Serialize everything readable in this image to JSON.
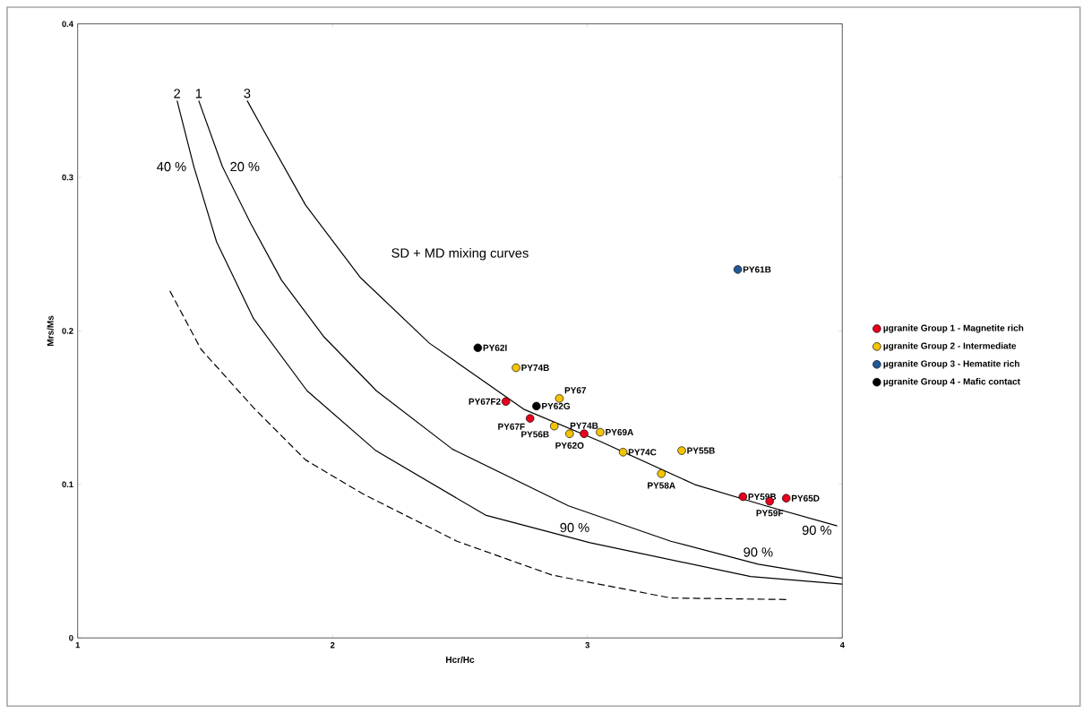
{
  "chart_data": {
    "type": "scatter",
    "xlabel": "Hcr/Hc",
    "ylabel": "Mrs/Ms",
    "xlim": [
      1,
      4
    ],
    "ylim": [
      0,
      0.4
    ],
    "xticks": [
      1,
      2,
      3,
      4
    ],
    "yticks": [
      0,
      0.1,
      0.2,
      0.3,
      0.4
    ],
    "legend": "right",
    "marker": "circle",
    "series": [
      {
        "name": "µgranite Group 1 - Magnetite rich",
        "color": "#e8001c",
        "x": [
          2.68,
          2.775,
          2.987,
          3.61,
          3.715,
          3.78
        ],
        "values": [
          0.154,
          0.143,
          0.133,
          0.092,
          0.089,
          0.091
        ]
      },
      {
        "name": "µgranite Group 2 - Intermediate",
        "color": "#f5c400",
        "x": [
          2.72,
          2.89,
          2.87,
          2.93,
          3.05,
          3.14,
          3.37,
          3.29
        ],
        "values": [
          0.176,
          0.156,
          0.138,
          0.133,
          0.134,
          0.121,
          0.122,
          0.107
        ]
      },
      {
        "name": "µgranite Group 3 - Hematite rich",
        "color": "#1f5a96",
        "x": [
          3.59
        ],
        "values": [
          0.24
        ]
      },
      {
        "name": "µgranite Group 4 - Mafic contact",
        "color": "#000000",
        "x": [
          2.57,
          2.8
        ],
        "values": [
          0.189,
          0.151
        ]
      },
      {
        "name": "2",
        "type": "line",
        "marker": "none",
        "line_style": "solid",
        "color": "#000000",
        "x": [
          1.39,
          1.456,
          1.545,
          1.69,
          1.9,
          2.17,
          2.6,
          3.01,
          3.64,
          4.0
        ],
        "values": [
          0.35,
          0.307,
          0.258,
          0.208,
          0.161,
          0.122,
          0.08,
          0.062,
          0.04,
          0.035
        ]
      },
      {
        "name": "1",
        "type": "line",
        "marker": "none",
        "line_style": "solid",
        "color": "#000000",
        "x": [
          1.475,
          1.568,
          1.679,
          1.8,
          1.967,
          2.172,
          2.47,
          2.926,
          3.327,
          3.67,
          4.0
        ],
        "values": [
          0.35,
          0.307,
          0.27,
          0.233,
          0.196,
          0.161,
          0.123,
          0.086,
          0.063,
          0.048,
          0.039
        ]
      },
      {
        "name": "3",
        "type": "line",
        "marker": "none",
        "line_style": "solid",
        "color": "#000000",
        "x": [
          1.665,
          1.725,
          1.894,
          2.108,
          2.38,
          2.75,
          3.05,
          3.42,
          3.7,
          3.98
        ],
        "values": [
          0.35,
          0.332,
          0.282,
          0.235,
          0.192,
          0.149,
          0.128,
          0.1,
          0.086,
          0.073
        ]
      },
      {
        "type": "line",
        "marker": "none",
        "line_style": "dashed",
        "color": "#000000",
        "x": [
          1.362,
          1.484,
          1.69,
          1.894,
          2.117,
          2.488,
          2.86,
          3.327,
          3.79
        ],
        "values": [
          0.226,
          0.188,
          0.15,
          0.116,
          0.094,
          0.063,
          0.041,
          0.026,
          0.025
        ]
      }
    ],
    "annotations": [
      "SD + MD mixing curves",
      {
        "text": "40 %",
        "x": 1.456,
        "y": 0.307
      },
      {
        "text": "20 %",
        "x": 1.568,
        "y": 0.307
      },
      {
        "text": "90 %",
        "x": 2.95,
        "y": 0.064
      },
      {
        "text": "90 %",
        "x": 3.67,
        "y": 0.048
      },
      {
        "text": "90 %",
        "x": 3.9,
        "y": 0.078
      },
      {
        "text": "PY61B",
        "x": 3.59,
        "y": 0.24
      },
      {
        "text": "PY62I",
        "x": 2.57,
        "y": 0.189
      },
      {
        "text": "PY74B",
        "x": 2.72,
        "y": 0.176
      },
      {
        "text": "PY67F2",
        "x": 2.68,
        "y": 0.154
      },
      {
        "text": "PY67",
        "x": 2.89,
        "y": 0.156
      },
      {
        "text": "PY62G",
        "x": 2.8,
        "y": 0.151
      },
      {
        "text": "PY67F",
        "x": 2.775,
        "y": 0.143
      },
      {
        "text": "PY56B",
        "x": 2.87,
        "y": 0.138
      },
      {
        "text": "PY74B",
        "x": 2.987,
        "y": 0.133
      },
      {
        "text": "PY62O",
        "x": 2.93,
        "y": 0.133
      },
      {
        "text": "PY69A",
        "x": 3.05,
        "y": 0.134
      },
      {
        "text": "PY74C",
        "x": 3.14,
        "y": 0.121
      },
      {
        "text": "PY55B",
        "x": 3.37,
        "y": 0.122
      },
      {
        "text": "PY58A",
        "x": 3.29,
        "y": 0.107
      },
      {
        "text": "PY59B",
        "x": 3.61,
        "y": 0.092
      },
      {
        "text": "PY59F",
        "x": 3.715,
        "y": 0.089
      },
      {
        "text": "PY65D",
        "x": 3.78,
        "y": 0.091
      }
    ]
  }
}
